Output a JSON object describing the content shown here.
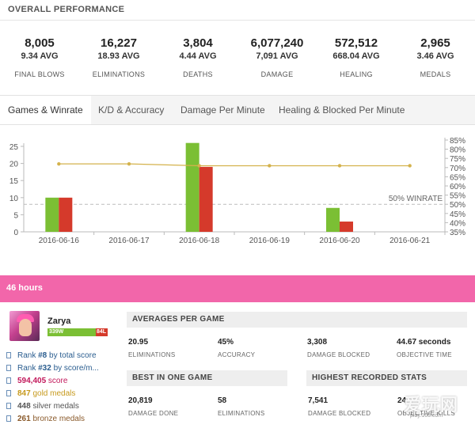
{
  "overall": {
    "title": "OVERALL PERFORMANCE",
    "stats": [
      {
        "value": "8,005",
        "avg": "9.34 AVG",
        "label": "FINAL BLOWS"
      },
      {
        "value": "16,227",
        "avg": "18.93 AVG",
        "label": "ELIMINATIONS"
      },
      {
        "value": "3,804",
        "avg": "4.44 AVG",
        "label": "DEATHS"
      },
      {
        "value": "6,077,240",
        "avg": "7,091 AVG",
        "label": "DAMAGE"
      },
      {
        "value": "572,512",
        "avg": "668.04 AVG",
        "label": "HEALING"
      },
      {
        "value": "2,965",
        "avg": "3.46 AVG",
        "label": "MEDALS"
      }
    ]
  },
  "tabs": [
    {
      "label": "Games & Winrate",
      "active": true
    },
    {
      "label": "K/D & Accuracy",
      "active": false
    },
    {
      "label": "Damage Per Minute",
      "active": false
    },
    {
      "label": "Healing & Blocked Per Minute",
      "active": false
    }
  ],
  "chart_data": {
    "type": "bar",
    "categories": [
      "2016-06-16",
      "2016-06-17",
      "2016-06-18",
      "2016-06-19",
      "2016-06-20",
      "2016-06-21"
    ],
    "series": [
      {
        "values": [
          10,
          0,
          26,
          0,
          7,
          0
        ],
        "color": "#7bbf34",
        "axis": "left"
      },
      {
        "values": [
          10,
          0,
          19,
          0,
          3,
          0
        ],
        "color": "#d53a2b",
        "axis": "left"
      },
      {
        "type": "line",
        "values": [
          72,
          72,
          71,
          71,
          71,
          71
        ],
        "color": "#d4b24c",
        "axis": "right"
      }
    ],
    "y_left": {
      "min": 0,
      "max": 25,
      "ticks": [
        0,
        5,
        10,
        15,
        20,
        25
      ]
    },
    "y_right": {
      "min": 35,
      "max": 85,
      "ticks": [
        "35%",
        "40%",
        "45%",
        "50%",
        "55%",
        "60%",
        "65%",
        "70%",
        "75%",
        "80%",
        "85%"
      ]
    },
    "reference_line": {
      "value": 50,
      "label": "50% WINRATE"
    },
    "legend": "none",
    "grid": false
  },
  "hours_bar": {
    "label": "46 hours",
    "color": "#f266aa"
  },
  "profile": {
    "hero": "Zarya",
    "wins": "339W",
    "losses": "84L",
    "win_fraction": 0.801,
    "rows": [
      {
        "prefix": "Rank ",
        "value": "#8",
        "suffix": " by total score",
        "color": "#2a5d8f"
      },
      {
        "prefix": "Rank ",
        "value": "#32",
        "suffix": " by score/m...",
        "color": "#2a5d8f"
      },
      {
        "prefix": "",
        "value": "594,405",
        "suffix": " score",
        "color": "#c2185b"
      },
      {
        "prefix": "",
        "value": "847",
        "suffix": " gold medals",
        "color": "#c79a1e"
      },
      {
        "prefix": "",
        "value": "448",
        "suffix": " silver medals",
        "color": "#555555"
      },
      {
        "prefix": "",
        "value": "261",
        "suffix": " bronze medals",
        "color": "#8a5a2b"
      }
    ]
  },
  "averages": {
    "title": "AVERAGES PER GAME",
    "cells": [
      {
        "value": "20.95",
        "label": "ELIMINATIONS"
      },
      {
        "value": "45%",
        "label": "ACCURACY"
      },
      {
        "value": "3,308",
        "label": "DAMAGE BLOCKED"
      },
      {
        "value": "44.67 seconds",
        "label": "OBJECTIVE TIME"
      }
    ]
  },
  "best": {
    "title": "BEST IN ONE GAME",
    "cells": [
      {
        "value": "20,819",
        "label": "DAMAGE DONE"
      },
      {
        "value": "58",
        "label": "ELIMINATIONS"
      }
    ]
  },
  "highest": {
    "title": "HIGHEST RECORDED STATS",
    "cells": [
      {
        "value": "7,541",
        "label": "DAMAGE BLOCKED"
      },
      {
        "value": "24",
        "label": "OBJECTIVE KILLS"
      }
    ]
  },
  "watermark": {
    "text": "爱玩网",
    "sub": "play.163.com"
  }
}
